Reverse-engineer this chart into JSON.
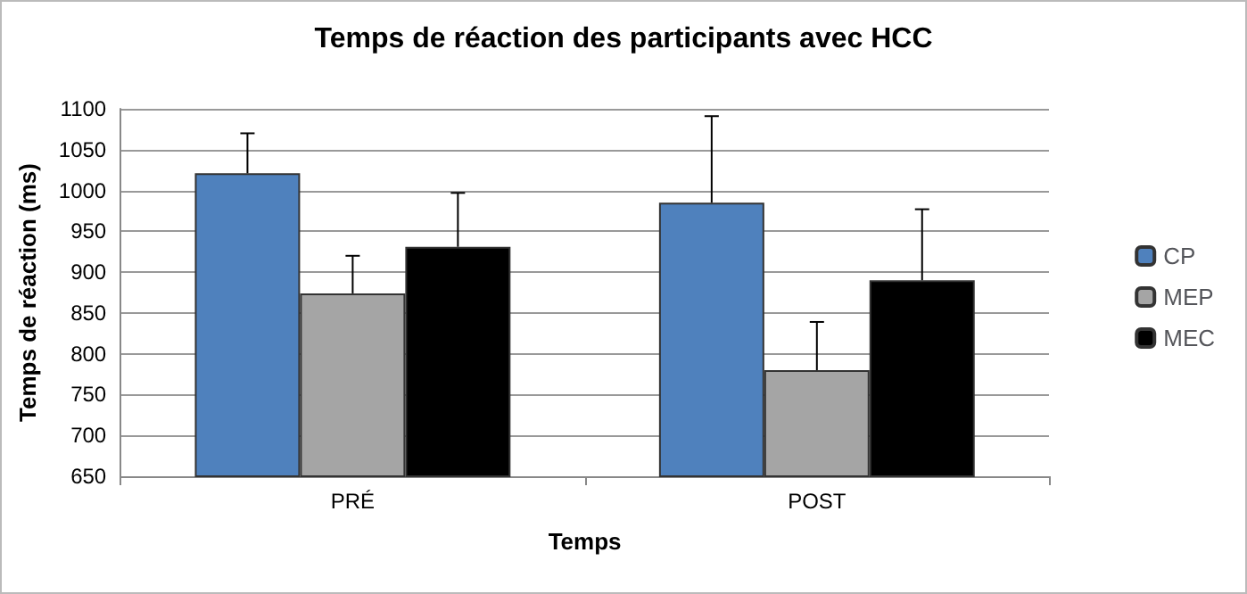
{
  "chart_data": {
    "type": "bar",
    "title": "Temps de réaction des participants avec HCC",
    "xlabel": "Temps",
    "ylabel": "Temps de réaction (ms)",
    "categories": [
      "PRÉ",
      "POST"
    ],
    "series": [
      {
        "name": "CP",
        "color": "#4f81bd",
        "values": [
          1021,
          985
        ],
        "errors": [
          [
            1021,
            1070
          ],
          [
            985,
            1091
          ]
        ]
      },
      {
        "name": "MEP",
        "color": "#a5a5a5",
        "values": [
          874,
          780
        ],
        "errors": [
          [
            874,
            920
          ],
          [
            780,
            839
          ]
        ]
      },
      {
        "name": "MEC",
        "color": "#000000",
        "values": [
          931,
          890
        ],
        "errors": [
          [
            931,
            997
          ],
          [
            890,
            977
          ]
        ]
      }
    ],
    "ylim": [
      650,
      1100
    ],
    "yticks": [
      650,
      700,
      750,
      800,
      850,
      900,
      950,
      1000,
      1050,
      1100
    ],
    "grid": "y",
    "legend": "right"
  }
}
